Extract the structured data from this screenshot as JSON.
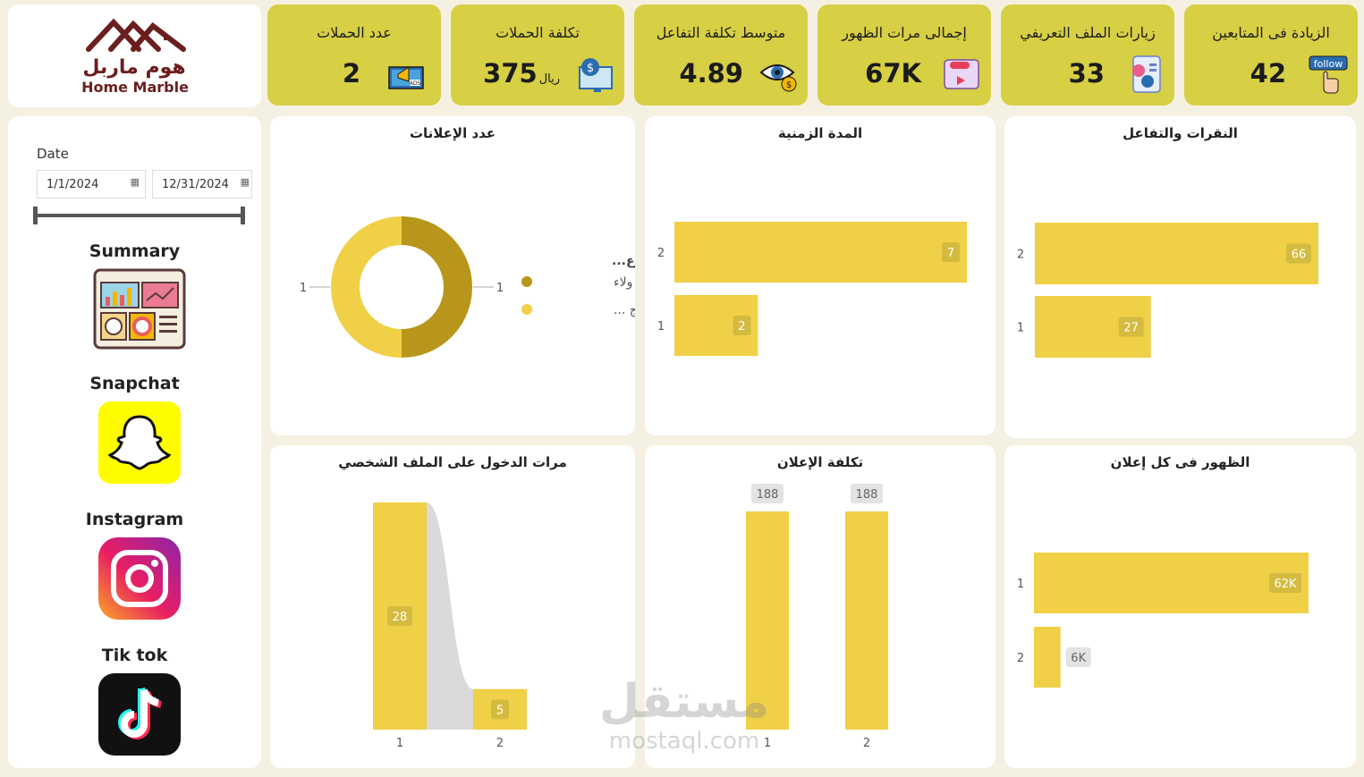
{
  "brand": {
    "name_ar": "هوم ماربل",
    "name_en": "Home Marble",
    "color": "#6b1e1e"
  },
  "kpis": [
    {
      "title": "الزيادة فى المتابعين",
      "value": "42",
      "icon": "follow-icon",
      "icon_text": "follow"
    },
    {
      "title": "زيارات الملف التعريفي",
      "value": "33",
      "icon": "profile-visits-icon"
    },
    {
      "title": "إجمالى مرات الظهور",
      "value": "67K",
      "icon": "impressions-icon"
    },
    {
      "title": "متوسط تكلفة التفاعل",
      "value": "4.89",
      "icon": "eye-cost-icon"
    },
    {
      "title": "تكلفة الحملات",
      "value": "375",
      "unit": "ريال",
      "icon": "campaign-cost-icon"
    },
    {
      "title": "عدد الحملات",
      "value": "2",
      "icon": "ads-megaphone-icon"
    }
  ],
  "filter": {
    "label": "Date",
    "start": "1/1/2024",
    "end": "12/31/2024"
  },
  "nav": [
    {
      "label": "Summary",
      "icon": "dashboard-summary-icon"
    },
    {
      "label": "Snapchat",
      "icon": "snapchat-icon"
    },
    {
      "label": "Instagram",
      "icon": "instagram-icon"
    },
    {
      "label": "Tik tok",
      "icon": "tiktok-icon"
    }
  ],
  "colors": {
    "accent": "#f0d046",
    "kpi_bg": "#d7cf44",
    "dark_gold": "#b8961b",
    "page_bg": "#f5f1e2"
  },
  "watermark": {
    "ar": "مستقل",
    "en": "mostaql.com"
  },
  "chart_data": [
    {
      "id": "ads-count",
      "type": "pie",
      "title": "عدد الإعلانات",
      "legend_title": "اسم المجموع...",
      "legend": "right",
      "categories": [
        "بطاقة ولاء",
        "حملة ترويج ..."
      ],
      "values": [
        1,
        1
      ],
      "colors": [
        "#b8961b",
        "#f0d046"
      ]
    },
    {
      "id": "duration",
      "type": "bar",
      "orientation": "horizontal",
      "title": "المدة الزمنية",
      "categories": [
        "2",
        "1"
      ],
      "values": [
        7,
        2
      ],
      "xlim": [
        0,
        7
      ]
    },
    {
      "id": "clicks",
      "type": "bar",
      "orientation": "horizontal",
      "title": "النقرات والتفاعل",
      "categories": [
        "2",
        "1"
      ],
      "values": [
        66,
        27
      ],
      "xlim": [
        0,
        66
      ]
    },
    {
      "id": "profile-visits",
      "type": "bar",
      "title": "مرات الدخول على الملف الشخصي",
      "categories": [
        "1",
        "2"
      ],
      "values": [
        28,
        5
      ],
      "ylim": [
        0,
        28
      ]
    },
    {
      "id": "ad-cost",
      "type": "bar",
      "title": "تكلفة الإعلان",
      "categories": [
        "1",
        "2"
      ],
      "values": [
        188,
        188
      ],
      "ylim": [
        0,
        188
      ]
    },
    {
      "id": "impressions",
      "type": "bar",
      "orientation": "horizontal",
      "title": "الظهور فى كل إعلان",
      "categories": [
        "1",
        "2"
      ],
      "values": [
        62000,
        6000
      ],
      "labels": [
        "62K",
        "6K"
      ],
      "xlim": [
        0,
        62000
      ]
    }
  ]
}
